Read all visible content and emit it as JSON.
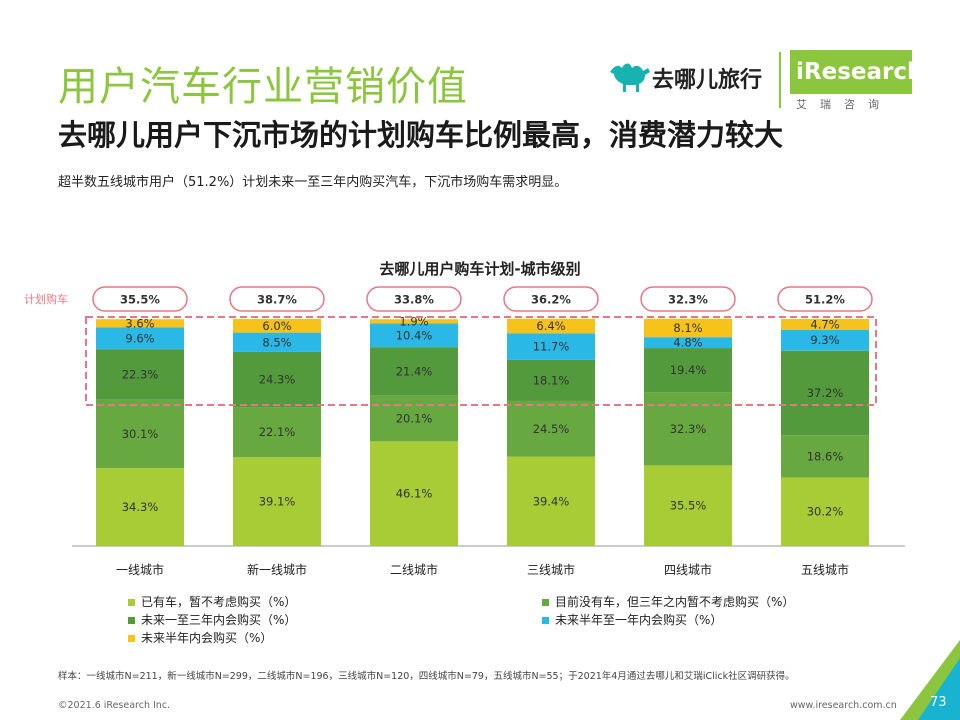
{
  "header": {
    "title": "用户汽车行业营销价值",
    "subtitle": "去哪儿用户下沉市场的计划购车比例最高，消费潜力较大",
    "description": "超半数五线城市用户（51.2%）计划未来一至三年内购买汽车，下沉市场购车需求明显。"
  },
  "logo": {
    "qunar_text": "去哪儿旅行",
    "iresearch_text": "iResearch",
    "iresearch_sub": "艾瑞咨询"
  },
  "colors": {
    "own_no_plan": "#a8cc36",
    "no_car_not_3yr": "#67a840",
    "plan_1_3yr": "#529a3b",
    "plan_half_1yr": "#2ab8e6",
    "plan_half_yr": "#f7c31b",
    "highlight": "#e57887"
  },
  "chart_data": {
    "type": "bar",
    "stacked": true,
    "title": "去哪儿用户购车计划-城市级别",
    "categories": [
      "一线城市",
      "新一线城市",
      "二线城市",
      "三线城市",
      "四线城市",
      "五线城市"
    ],
    "series": [
      {
        "name": "已有车，暂不考虑购买（%）",
        "values": [
          34.3,
          39.1,
          46.1,
          39.4,
          35.5,
          30.2
        ]
      },
      {
        "name": "目前没有车，但三年之内暂不考虑购买（%）",
        "values": [
          30.1,
          22.1,
          20.1,
          24.5,
          32.3,
          18.6
        ]
      },
      {
        "name": "未来一至三年内会购买（%）",
        "values": [
          22.3,
          24.3,
          21.4,
          18.1,
          19.4,
          37.2
        ]
      },
      {
        "name": "未来半年至一年内会购买（%）",
        "values": [
          9.6,
          8.5,
          10.4,
          11.7,
          4.8,
          9.3
        ]
      },
      {
        "name": "未来半年内会购买（%）",
        "values": [
          3.6,
          6.0,
          1.9,
          6.4,
          8.1,
          4.7
        ]
      }
    ],
    "value_labels": [
      [
        "34.3%",
        "39.1%",
        "46.1%",
        "39.4%",
        "35.5%",
        "30.2%"
      ],
      [
        "30.1%",
        "22.1%",
        "20.1%",
        "24.5%",
        "32.3%",
        "18.6%"
      ],
      [
        "22.3%",
        "24.3%",
        "21.4%",
        "18.1%",
        "19.4%",
        "37.2%"
      ],
      [
        "9.6%",
        "8.5%",
        "10.4%",
        "11.7%",
        "4.8%",
        "9.3%"
      ],
      [
        "3.6%",
        "6.0%",
        "1.9%",
        "6.4%",
        "8.1%",
        "4.7%"
      ]
    ],
    "plan_label": "计划购车",
    "plan_totals": [
      "35.5%",
      "38.7%",
      "33.8%",
      "36.2%",
      "32.3%",
      "51.2%"
    ],
    "ylim": [
      0,
      100
    ]
  },
  "legend": [
    {
      "label": "已有车，暂不考虑购买（%）"
    },
    {
      "label": "目前没有车，但三年之内暂不考虑购买（%）"
    },
    {
      "label": "未来一至三年内会购买（%）"
    },
    {
      "label": "未来半年至一年内会购买（%）"
    },
    {
      "label": "未来半年内会购买（%）"
    }
  ],
  "footer": {
    "sample": "样本：一线城市N=211，新一线城市N=299，二线城市N=196，三线城市N=120，四线城市N=79，五线城市N=55；于2021年4月通过去哪儿和艾瑞iClick社区调研获得。",
    "copyright": "©2021.6 iResearch Inc.",
    "website": "www.iresearch.com.cn",
    "page": "73"
  }
}
